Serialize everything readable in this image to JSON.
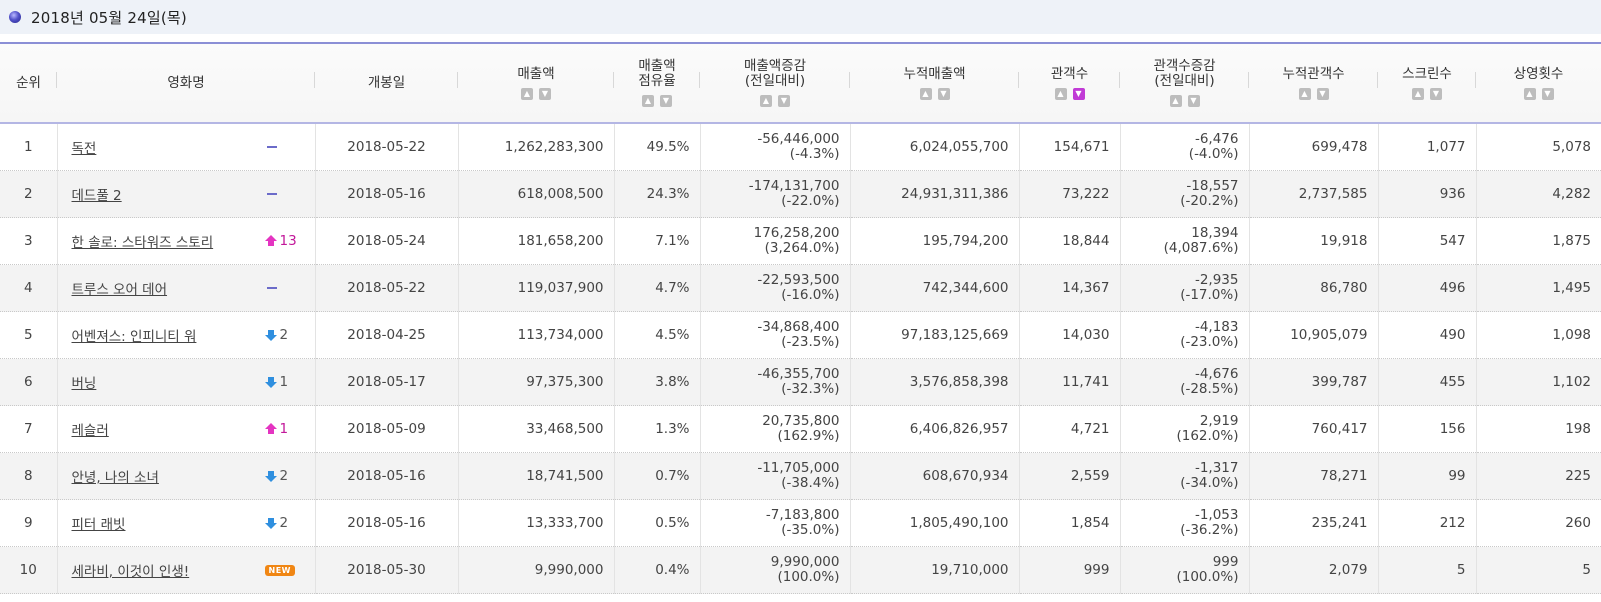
{
  "date_header": "2018년 05월 24일(목)",
  "columns": [
    {
      "label": "순위",
      "sort": false
    },
    {
      "label": "영화명",
      "sort": false
    },
    {
      "label": "개봉일",
      "sort": false
    },
    {
      "label": "매출액",
      "sort": true,
      "active": "none"
    },
    {
      "label": "매출액\n점유율",
      "sort": true,
      "active": "none"
    },
    {
      "label": "매출액증감\n(전일대비)",
      "sort": true,
      "active": "none"
    },
    {
      "label": "누적매출액",
      "sort": true,
      "active": "none"
    },
    {
      "label": "관객수",
      "sort": true,
      "active": "down"
    },
    {
      "label": "관객수증감\n(전일대비)",
      "sort": true,
      "active": "none"
    },
    {
      "label": "누적관객수",
      "sort": true,
      "active": "none"
    },
    {
      "label": "스크린수",
      "sort": true,
      "active": "none"
    },
    {
      "label": "상영횟수",
      "sort": true,
      "active": "none"
    }
  ],
  "rows": [
    {
      "rank": "1",
      "title": "독전",
      "change": {
        "type": "same",
        "value": ""
      },
      "open": "2018-05-22",
      "sales": "1,262,283,300",
      "share": "49.5%",
      "sales_diff": "-56,446,000",
      "sales_diff_pct": "(-4.3%)",
      "acc_sales": "6,024,055,700",
      "audience": "154,671",
      "aud_diff": "-6,476",
      "aud_diff_pct": "(-4.0%)",
      "acc_aud": "699,478",
      "screens": "1,077",
      "shows": "5,078"
    },
    {
      "rank": "2",
      "title": "데드풀 2",
      "change": {
        "type": "same",
        "value": ""
      },
      "open": "2018-05-16",
      "sales": "618,008,500",
      "share": "24.3%",
      "sales_diff": "-174,131,700",
      "sales_diff_pct": "(-22.0%)",
      "acc_sales": "24,931,311,386",
      "audience": "73,222",
      "aud_diff": "-18,557",
      "aud_diff_pct": "(-20.2%)",
      "acc_aud": "2,737,585",
      "screens": "936",
      "shows": "4,282"
    },
    {
      "rank": "3",
      "title": "한 솔로: 스타워즈 스토리",
      "change": {
        "type": "up",
        "value": "13"
      },
      "open": "2018-05-24",
      "sales": "181,658,200",
      "share": "7.1%",
      "sales_diff": "176,258,200",
      "sales_diff_pct": "(3,264.0%)",
      "acc_sales": "195,794,200",
      "audience": "18,844",
      "aud_diff": "18,394",
      "aud_diff_pct": "(4,087.6%)",
      "acc_aud": "19,918",
      "screens": "547",
      "shows": "1,875"
    },
    {
      "rank": "4",
      "title": "트루스 오어 데어",
      "change": {
        "type": "same",
        "value": ""
      },
      "open": "2018-05-22",
      "sales": "119,037,900",
      "share": "4.7%",
      "sales_diff": "-22,593,500",
      "sales_diff_pct": "(-16.0%)",
      "acc_sales": "742,344,600",
      "audience": "14,367",
      "aud_diff": "-2,935",
      "aud_diff_pct": "(-17.0%)",
      "acc_aud": "86,780",
      "screens": "496",
      "shows": "1,495"
    },
    {
      "rank": "5",
      "title": "어벤져스: 인피니티 워",
      "change": {
        "type": "down",
        "value": "2"
      },
      "open": "2018-04-25",
      "sales": "113,734,000",
      "share": "4.5%",
      "sales_diff": "-34,868,400",
      "sales_diff_pct": "(-23.5%)",
      "acc_sales": "97,183,125,669",
      "audience": "14,030",
      "aud_diff": "-4,183",
      "aud_diff_pct": "(-23.0%)",
      "acc_aud": "10,905,079",
      "screens": "490",
      "shows": "1,098"
    },
    {
      "rank": "6",
      "title": "버닝",
      "change": {
        "type": "down",
        "value": "1"
      },
      "open": "2018-05-17",
      "sales": "97,375,300",
      "share": "3.8%",
      "sales_diff": "-46,355,700",
      "sales_diff_pct": "(-32.3%)",
      "acc_sales": "3,576,858,398",
      "audience": "11,741",
      "aud_diff": "-4,676",
      "aud_diff_pct": "(-28.5%)",
      "acc_aud": "399,787",
      "screens": "455",
      "shows": "1,102"
    },
    {
      "rank": "7",
      "title": "레슬러",
      "change": {
        "type": "up",
        "value": "1"
      },
      "open": "2018-05-09",
      "sales": "33,468,500",
      "share": "1.3%",
      "sales_diff": "20,735,800",
      "sales_diff_pct": "(162.9%)",
      "acc_sales": "6,406,826,957",
      "audience": "4,721",
      "aud_diff": "2,919",
      "aud_diff_pct": "(162.0%)",
      "acc_aud": "760,417",
      "screens": "156",
      "shows": "198"
    },
    {
      "rank": "8",
      "title": "안녕, 나의 소녀",
      "change": {
        "type": "down",
        "value": "2"
      },
      "open": "2018-05-16",
      "sales": "18,741,500",
      "share": "0.7%",
      "sales_diff": "-11,705,000",
      "sales_diff_pct": "(-38.4%)",
      "acc_sales": "608,670,934",
      "audience": "2,559",
      "aud_diff": "-1,317",
      "aud_diff_pct": "(-34.0%)",
      "acc_aud": "78,271",
      "screens": "99",
      "shows": "225"
    },
    {
      "rank": "9",
      "title": "피터 래빗",
      "change": {
        "type": "down",
        "value": "2"
      },
      "open": "2018-05-16",
      "sales": "13,333,700",
      "share": "0.5%",
      "sales_diff": "-7,183,800",
      "sales_diff_pct": "(-35.0%)",
      "acc_sales": "1,805,490,100",
      "audience": "1,854",
      "aud_diff": "-1,053",
      "aud_diff_pct": "(-36.2%)",
      "acc_aud": "235,241",
      "screens": "212",
      "shows": "260"
    },
    {
      "rank": "10",
      "title": "세라비, 이것이 인생!",
      "change": {
        "type": "new",
        "value": "NEW"
      },
      "open": "2018-05-30",
      "sales": "9,990,000",
      "share": "0.4%",
      "sales_diff": "9,990,000",
      "sales_diff_pct": "(100.0%)",
      "acc_sales": "19,710,000",
      "audience": "999",
      "aud_diff": "999",
      "aud_diff_pct": "(100.0%)",
      "acc_aud": "2,079",
      "screens": "5",
      "shows": "5"
    }
  ]
}
